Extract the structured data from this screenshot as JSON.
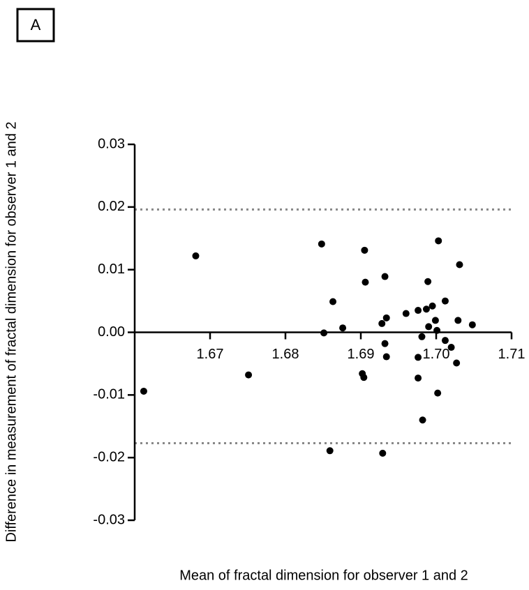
{
  "chart_data": {
    "type": "scatter",
    "panel_label": "A",
    "xlabel": "Mean of fractal dimension for observer 1 and 2",
    "ylabel": "Difference in measurement of fractal dimension for observer 1 and 2",
    "xlim": [
      1.66,
      1.71
    ],
    "ylim": [
      -0.03,
      0.03
    ],
    "xticks": [
      1.67,
      1.68,
      1.69,
      {
        "value": 1.7,
        "label": "1.70"
      },
      1.71
    ],
    "yticks": [
      -0.03,
      -0.02,
      -0.01,
      {
        "value": 0,
        "label": "0.00"
      },
      0.01,
      0.02,
      0.03
    ],
    "hlines": [
      0.0196,
      -0.0177
    ],
    "color": "#000000",
    "x": [
      1.6612,
      1.6681,
      1.6751,
      1.6848,
      1.6851,
      1.6863,
      1.6859,
      1.6876,
      1.6905,
      1.6906,
      1.6902,
      1.6904,
      1.6932,
      1.6928,
      1.6934,
      1.6932,
      1.6934,
      1.6929,
      1.696,
      1.6976,
      1.6981,
      1.6976,
      1.6976,
      1.6982,
      1.6987,
      1.6989,
      1.699,
      1.6995,
      1.6999,
      1.7001,
      1.7003,
      1.7002,
      1.7012,
      1.7012,
      1.702,
      1.7029,
      1.7027,
      1.7031,
      1.7048
    ],
    "values": [
      -0.0094,
      0.0122,
      -0.0068,
      0.0141,
      -0.0001,
      0.0049,
      -0.0189,
      0.0007,
      0.0131,
      0.008,
      -0.0066,
      -0.0072,
      0.0089,
      0.0014,
      0.0023,
      -0.0018,
      -0.0039,
      -0.0193,
      0.003,
      0.0035,
      -0.0007,
      -0.004,
      -0.0073,
      -0.014,
      0.0037,
      0.0081,
      0.0009,
      0.0042,
      0.0019,
      0.0003,
      0.0146,
      -0.0097,
      0.005,
      -0.0013,
      -0.0024,
      0.0019,
      -0.0049,
      0.0108,
      0.0012
    ]
  }
}
